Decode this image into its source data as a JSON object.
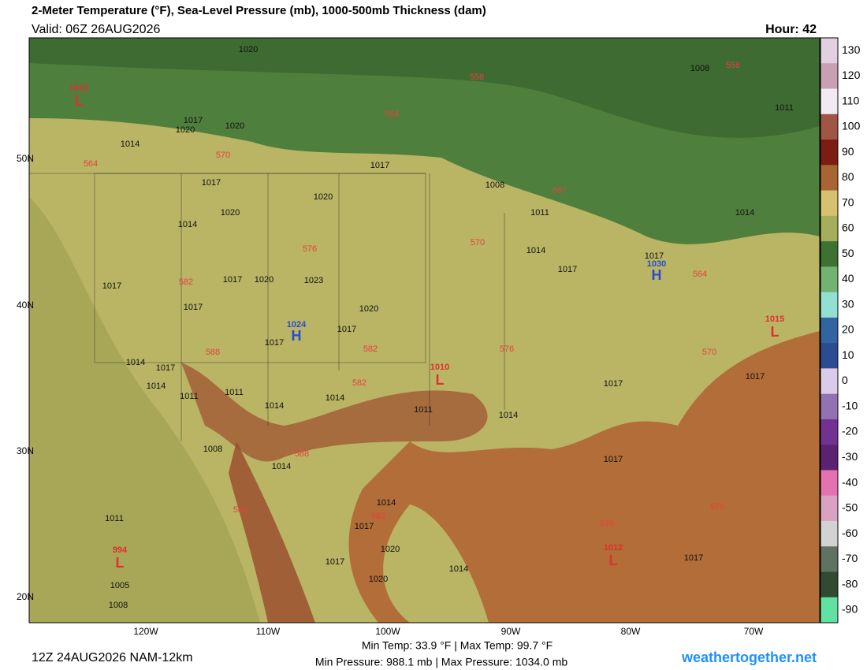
{
  "header": {
    "title": "2-Meter Temperature (°F), Sea-Level Pressure (mb), 1000-500mb Thickness (dam)",
    "valid": "Valid: 06Z 26AUG2026",
    "hour": "Hour: 42"
  },
  "map": {
    "lat_labels": [
      "50N",
      "40N",
      "30N",
      "20N"
    ],
    "lon_labels": [
      "120W",
      "110W",
      "100W",
      "90W",
      "80W",
      "70W"
    ],
    "pressure_labels": [
      "1020",
      "1017",
      "1020",
      "1014",
      "1020",
      "1017",
      "1017",
      "1020",
      "1014",
      "1020",
      "1008",
      "1011",
      "1014",
      "1017",
      "1017",
      "1014",
      "1008",
      "1011",
      "1017",
      "1017",
      "1020",
      "1023",
      "1017",
      "1017",
      "1020",
      "1017",
      "1014",
      "1017",
      "1014",
      "1011",
      "1011",
      "1014",
      "1014",
      "1011",
      "1014",
      "1017",
      "1017",
      "1008",
      "1014",
      "1017",
      "1014",
      "1017",
      "1020",
      "1017",
      "1020",
      "1014",
      "1011",
      "1005",
      "1008",
      "1017"
    ],
    "thickness_labels": [
      "558",
      "558",
      "564",
      "564",
      "570",
      "567",
      "570",
      "576",
      "582",
      "564",
      "570",
      "576",
      "582",
      "582",
      "588",
      "588",
      "582",
      "582",
      "576",
      "576"
    ],
    "highs": [
      {
        "pressure": "1030",
        "letter": "H"
      },
      {
        "pressure": "1024",
        "letter": "H"
      }
    ],
    "lows": [
      {
        "pressure": "1010",
        "letter": "L"
      },
      {
        "pressure": "1010",
        "letter": "L"
      },
      {
        "pressure": "1015",
        "letter": "L"
      },
      {
        "pressure": "1012",
        "letter": "L"
      },
      {
        "pressure": "994",
        "letter": "L"
      }
    ]
  },
  "colorbar": {
    "ticks": [
      130,
      120,
      110,
      100,
      90,
      80,
      70,
      60,
      50,
      40,
      30,
      20,
      10,
      0,
      -10,
      -20,
      -30,
      -40,
      -50,
      -60,
      -70,
      -80,
      -90
    ],
    "colors": [
      "#e2cfe0",
      "#c9a0b2",
      "#f2eaf2",
      "#a05545",
      "#7c1c12",
      "#a96434",
      "#d6c170",
      "#a6ae5c",
      "#3d7232",
      "#72b272",
      "#92e0d2",
      "#3364a2",
      "#2c4c92",
      "#dacbe8",
      "#9372b2",
      "#723292",
      "#5c2272",
      "#e272b2",
      "#daa2c2",
      "#d2d2d2",
      "#627262",
      "#324a32",
      "#62e2a2"
    ]
  },
  "footer": {
    "run": "12Z 24AUG2026 NAM-12km",
    "temps": "Min Temp:  33.9 °F | Max Temp:  99.7 °F",
    "pressures": "Min Pressure: 988.1 mb | Max Pressure: 1034.0 mb",
    "site": "weathertogether.net"
  }
}
